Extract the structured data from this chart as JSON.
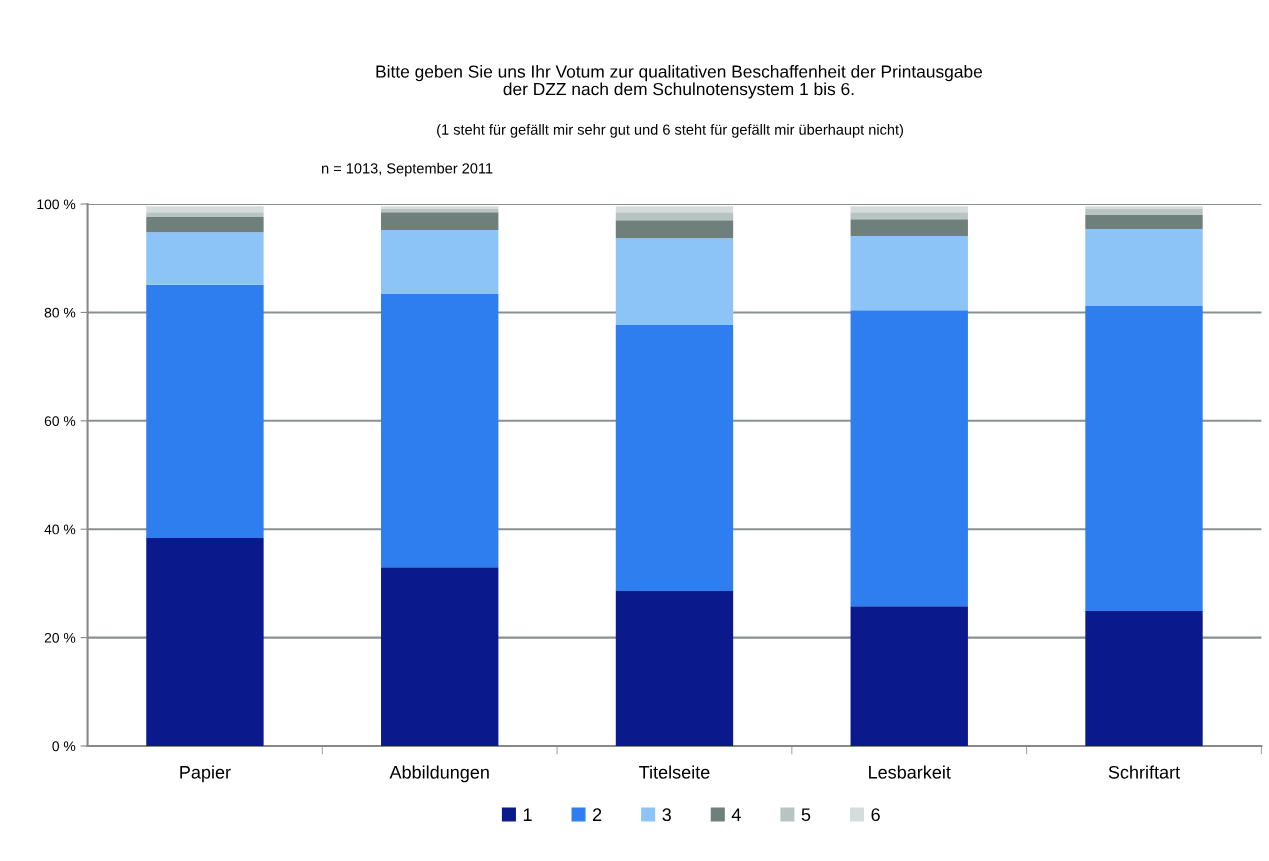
{
  "chart_data": {
    "type": "bar",
    "stacked": true,
    "title": "Bitte geben Sie uns Ihr Votum zur qualitativen Beschaffenheit der Printausgabe\nder DZZ nach dem Schulnotensystem 1 bis 6.",
    "subtitle": "(1 steht für gefällt mir sehr gut und 6 steht für gefällt mir überhaupt nicht)",
    "annotations": [
      "n = 1013, September 2011"
    ],
    "categories": [
      "Papier",
      "Abbildungen",
      "Titelseite",
      "Lesbarkeit",
      "Schriftart"
    ],
    "series": [
      {
        "name": "1",
        "color": "#0a1a8c",
        "values": [
          38.4,
          33.0,
          28.6,
          25.8,
          24.9
        ]
      },
      {
        "name": "2",
        "color": "#2f7ef0",
        "values": [
          46.7,
          50.4,
          49.1,
          54.6,
          56.3
        ]
      },
      {
        "name": "3",
        "color": "#8cc4f8",
        "values": [
          9.7,
          11.8,
          16.0,
          13.7,
          14.2
        ]
      },
      {
        "name": "4",
        "color": "#6f7f7c",
        "values": [
          2.8,
          3.3,
          3.3,
          3.1,
          2.6
        ]
      },
      {
        "name": "5",
        "color": "#b7c4c2",
        "values": [
          0.9,
          0.6,
          1.5,
          1.3,
          1.1
        ]
      },
      {
        "name": "6",
        "color": "#d5dcdb",
        "values": [
          1.1,
          0.5,
          1.1,
          1.1,
          0.5
        ]
      }
    ],
    "ylim": [
      0,
      100
    ],
    "yticks": [
      {
        "value": 0,
        "label": "0 %"
      },
      {
        "value": 20,
        "label": "20 %"
      },
      {
        "value": 40,
        "label": "40 %"
      },
      {
        "value": 60,
        "label": "60 %"
      },
      {
        "value": 80,
        "label": "80 %"
      },
      {
        "value": 100,
        "label": "100 %"
      }
    ],
    "grid": "y",
    "legend": "bottom"
  }
}
